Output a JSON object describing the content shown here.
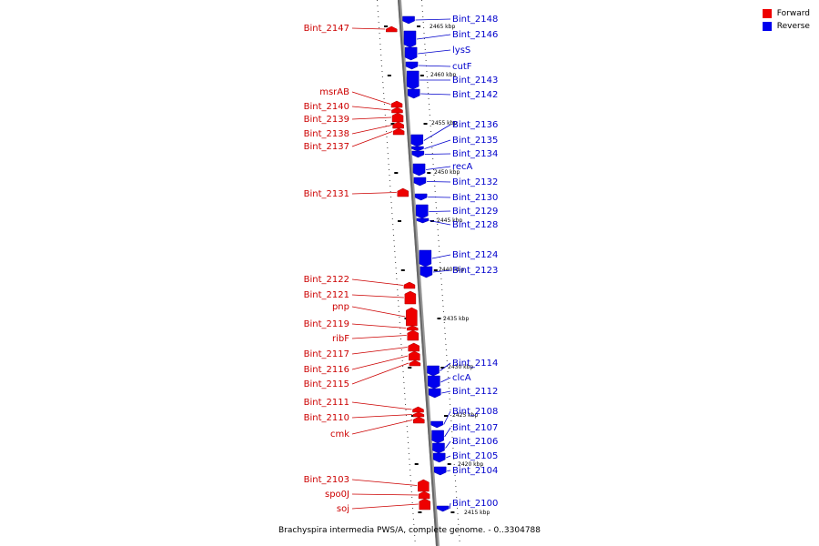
{
  "legend": [
    {
      "label": "Forward",
      "color": "#ee0000"
    },
    {
      "label": "Reverse",
      "color": "#0000ee"
    }
  ],
  "caption": "Brachyspira intermedia PWS/A, complete genome. - 0..3304788",
  "scale_labels": [
    "2465 kbp",
    "2460 kbp",
    "2455 kbp",
    "2450 kbp",
    "2445 kbp",
    "2440 kbp",
    "2435 kbp",
    "2430 kbp",
    "2425 kbp",
    "2420 kbp",
    "2415 kbp"
  ],
  "forward_genes": [
    "Bint_2147",
    "msrAB",
    "Bint_2140",
    "Bint_2139",
    "Bint_2138",
    "Bint_2137",
    "Bint_2131",
    "Bint_2122",
    "Bint_2121",
    "pnp",
    "Bint_2119",
    "ribF",
    "Bint_2117",
    "Bint_2116",
    "Bint_2115",
    "Bint_2111",
    "Bint_2110",
    "cmk",
    "Bint_2103",
    "spo0J",
    "soj"
  ],
  "reverse_genes": [
    "Bint_2148",
    "Bint_2146",
    "lysS",
    "cutF",
    "Bint_2143",
    "Bint_2142",
    "Bint_2136",
    "Bint_2135",
    "Bint_2134",
    "recA",
    "Bint_2132",
    "Bint_2130",
    "Bint_2129",
    "Bint_2128",
    "Bint_2124",
    "Bint_2123",
    "Bint_2114",
    "clcA",
    "Bint_2112",
    "Bint_2108",
    "Bint_2107",
    "Bint_2106",
    "Bint_2105",
    "Bint_2104",
    "Bint_2100"
  ]
}
